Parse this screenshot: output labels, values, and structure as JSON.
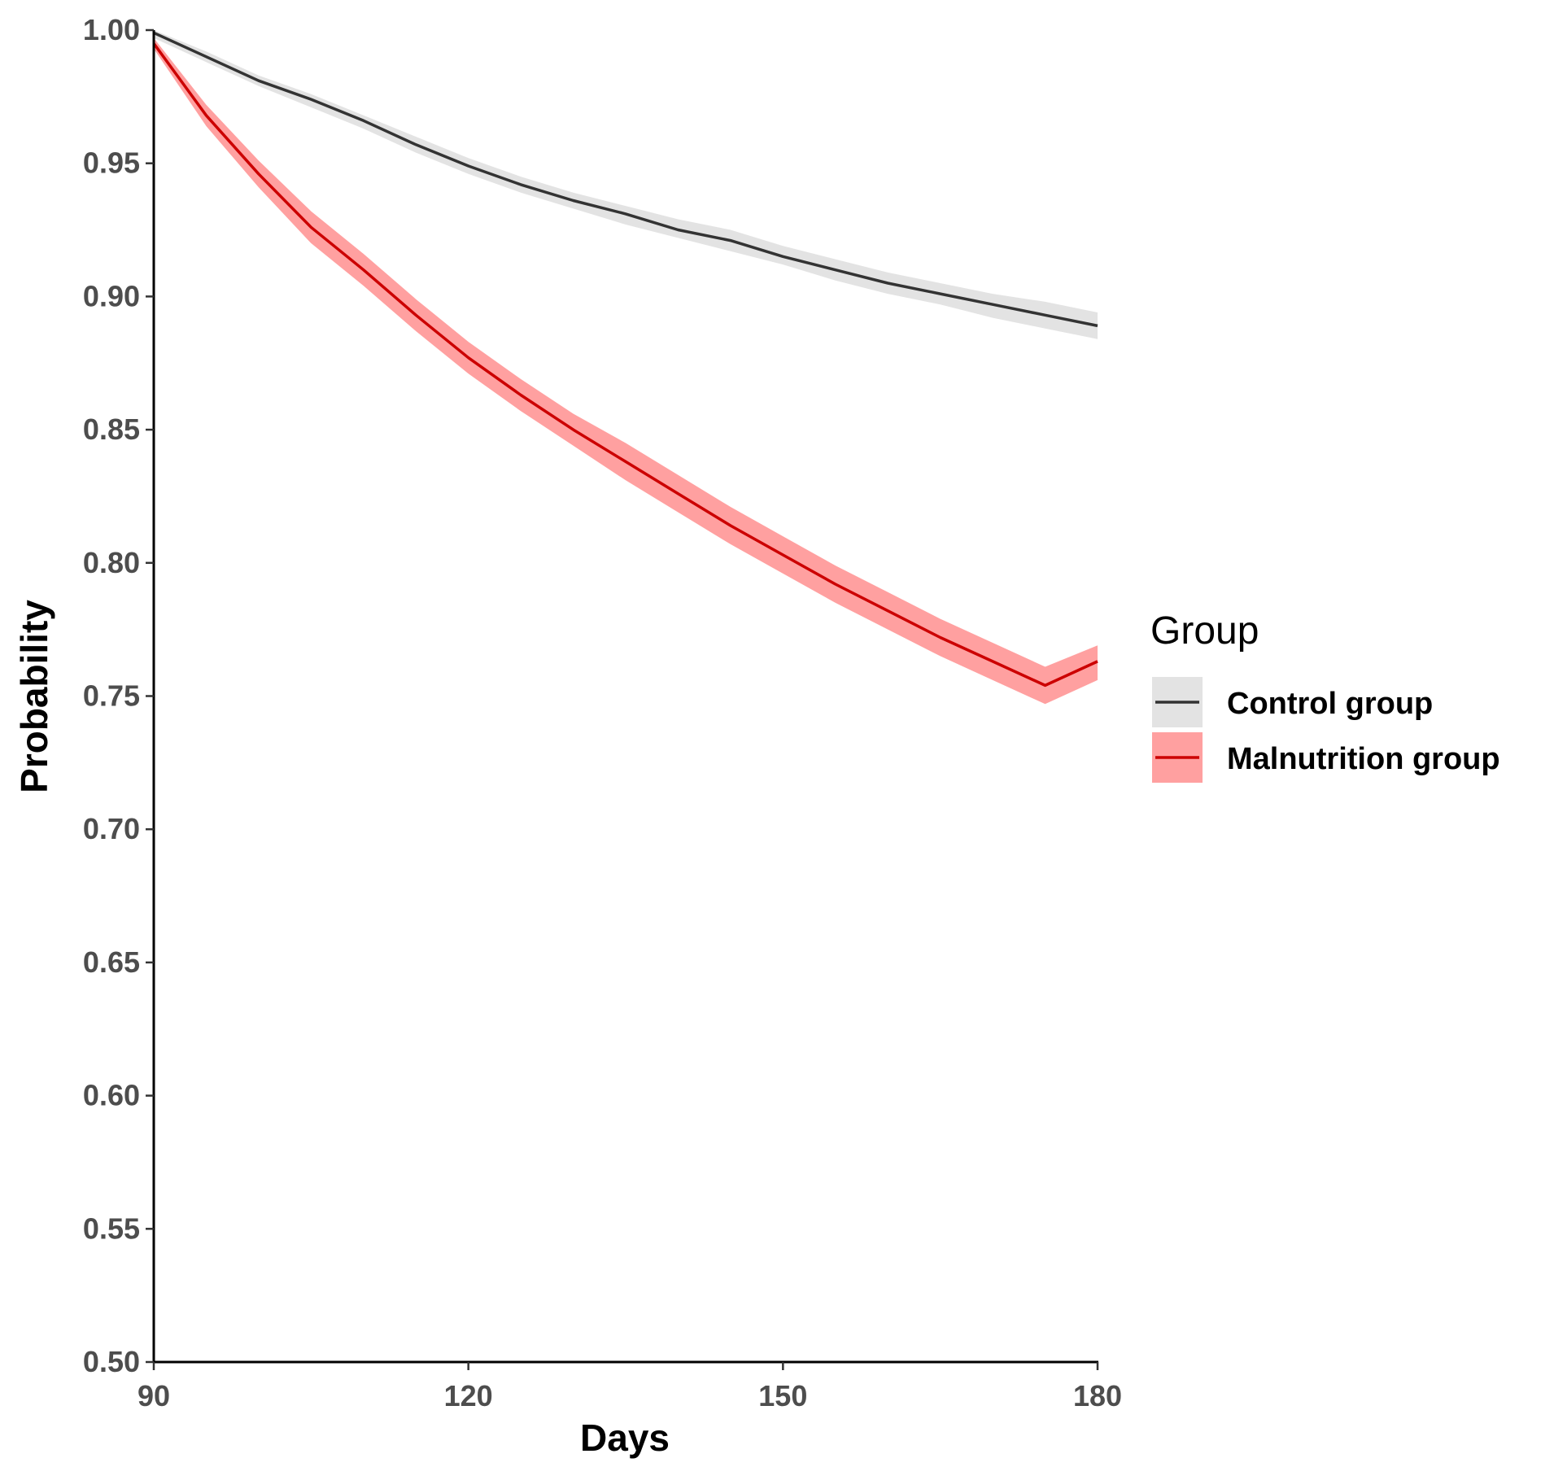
{
  "chart_data": {
    "type": "line",
    "xlabel": "Days",
    "ylabel": "Probability",
    "xlim": [
      90,
      180
    ],
    "ylim": [
      0.5,
      1.0
    ],
    "x_ticks": [
      "90",
      "120",
      "150",
      "180"
    ],
    "y_ticks": [
      "0.50",
      "0.55",
      "0.60",
      "0.65",
      "0.70",
      "0.75",
      "0.80",
      "0.85",
      "0.90",
      "0.95",
      "1.00"
    ],
    "grid": false,
    "legend": {
      "title": "Group",
      "position": "right"
    },
    "x": [
      90,
      95,
      100,
      105,
      110,
      115,
      120,
      125,
      130,
      135,
      140,
      145,
      150,
      155,
      160,
      165,
      170,
      175,
      180
    ],
    "series": [
      {
        "name": "Control group",
        "color": "#333333",
        "band_color": "#e3e3e3",
        "values": [
          0.999,
          0.99,
          0.981,
          0.974,
          0.966,
          0.957,
          0.949,
          0.942,
          0.936,
          0.931,
          0.925,
          0.921,
          0.915,
          0.91,
          0.905,
          0.901,
          0.897,
          0.893,
          0.889
        ],
        "lower": [
          0.997,
          0.988,
          0.979,
          0.971,
          0.963,
          0.954,
          0.946,
          0.939,
          0.933,
          0.927,
          0.922,
          0.917,
          0.912,
          0.906,
          0.901,
          0.897,
          0.892,
          0.888,
          0.884
        ],
        "upper": [
          1.0,
          0.992,
          0.983,
          0.976,
          0.968,
          0.96,
          0.952,
          0.945,
          0.939,
          0.934,
          0.929,
          0.925,
          0.919,
          0.914,
          0.909,
          0.905,
          0.901,
          0.898,
          0.894
        ]
      },
      {
        "name": "Malnutrition group",
        "color": "#cc0000",
        "band_color": "#ffa0a0",
        "values": [
          0.995,
          0.968,
          0.946,
          0.926,
          0.91,
          0.893,
          0.877,
          0.863,
          0.85,
          0.838,
          0.826,
          0.814,
          0.803,
          0.792,
          0.782,
          0.772,
          0.763,
          0.754,
          0.763
        ],
        "lower": [
          0.993,
          0.964,
          0.941,
          0.92,
          0.904,
          0.887,
          0.871,
          0.857,
          0.844,
          0.831,
          0.819,
          0.807,
          0.796,
          0.785,
          0.775,
          0.765,
          0.756,
          0.747,
          0.756
        ],
        "upper": [
          0.997,
          0.972,
          0.951,
          0.932,
          0.916,
          0.899,
          0.883,
          0.869,
          0.856,
          0.845,
          0.833,
          0.821,
          0.81,
          0.799,
          0.789,
          0.779,
          0.77,
          0.761,
          0.769
        ]
      }
    ]
  }
}
